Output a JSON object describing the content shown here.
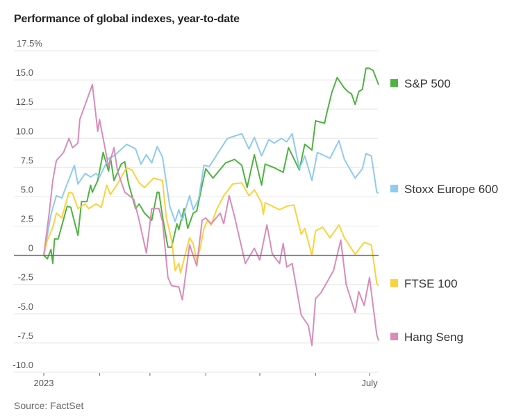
{
  "title": "Performance of global indexes, year-to-date",
  "source": "Source: FactSet",
  "chart_data": {
    "type": "line",
    "title": "Performance of global indexes, year-to-date",
    "xlabel": "",
    "ylabel": "",
    "x_range": [
      "2023-01-01",
      "2023-07-06"
    ],
    "ylim": [
      -10,
      17.5
    ],
    "y_ticks": [
      17.5,
      15,
      12.5,
      10,
      7.5,
      5,
      2.5,
      0,
      -2.5,
      -5,
      -7.5,
      -10
    ],
    "y_tick_labels": [
      "17.5%",
      "15.0",
      "12.5",
      "10.0",
      "7.5",
      "5.0",
      "2.5",
      "0",
      "-2.5",
      "-5.0",
      "-7.5",
      "-10.0"
    ],
    "x_ticks": [
      "2023-01-01",
      "2023-02-01",
      "2023-03-01",
      "2023-04-01",
      "2023-05-01",
      "2023-06-01",
      "2023-07-01"
    ],
    "x_tick_labels": [
      {
        "date": "2023-01-01",
        "label": "2023"
      },
      {
        "date": "2023-07-01",
        "label": "July"
      }
    ],
    "grid": true,
    "legend_placement": "right, at line ends",
    "series": [
      {
        "name": "S&P 500",
        "color": "#4db340",
        "points": [
          [
            "2023-01-01",
            0
          ],
          [
            "2023-01-03",
            -0.3
          ],
          [
            "2023-01-05",
            0.5
          ],
          [
            "2023-01-06",
            -0.7
          ],
          [
            "2023-01-07",
            1.4
          ],
          [
            "2023-01-09",
            1.4
          ],
          [
            "2023-01-14",
            4.2
          ],
          [
            "2023-01-16",
            4.1
          ],
          [
            "2023-01-20",
            1.7
          ],
          [
            "2023-01-22",
            4.6
          ],
          [
            "2023-01-25",
            4.6
          ],
          [
            "2023-01-27",
            6.0
          ],
          [
            "2023-01-28",
            5.4
          ],
          [
            "2023-01-31",
            6.4
          ],
          [
            "2023-02-03",
            8.8
          ],
          [
            "2023-02-06",
            7.2
          ],
          [
            "2023-02-07",
            8.4
          ],
          [
            "2023-02-09",
            6.4
          ],
          [
            "2023-02-13",
            7.8
          ],
          [
            "2023-02-15",
            8.0
          ],
          [
            "2023-02-17",
            6.2
          ],
          [
            "2023-02-21",
            4.0
          ],
          [
            "2023-02-23",
            4.4
          ],
          [
            "2023-02-26",
            3.6
          ],
          [
            "2023-03-02",
            3.0
          ],
          [
            "2023-03-05",
            5.4
          ],
          [
            "2023-03-06",
            5.4
          ],
          [
            "2023-03-08",
            3.3
          ],
          [
            "2023-03-11",
            0.7
          ],
          [
            "2023-03-13",
            0.7
          ],
          [
            "2023-03-16",
            2.7
          ],
          [
            "2023-03-17",
            2.2
          ],
          [
            "2023-03-20",
            4.0
          ],
          [
            "2023-03-22",
            2.3
          ],
          [
            "2023-03-25",
            3.6
          ],
          [
            "2023-03-27",
            3.8
          ],
          [
            "2023-03-30",
            6.0
          ],
          [
            "2023-04-01",
            7.4
          ],
          [
            "2023-04-05",
            6.6
          ],
          [
            "2023-04-12",
            7.9
          ],
          [
            "2023-04-17",
            8.2
          ],
          [
            "2023-04-21",
            7.7
          ],
          [
            "2023-04-24",
            5.8
          ],
          [
            "2023-04-28",
            8.6
          ],
          [
            "2023-05-02",
            6.0
          ],
          [
            "2023-05-04",
            7.8
          ],
          [
            "2023-05-09",
            7.5
          ],
          [
            "2023-05-14",
            7.1
          ],
          [
            "2023-05-17",
            9.2
          ],
          [
            "2023-05-23",
            7.3
          ],
          [
            "2023-05-26",
            9.5
          ],
          [
            "2023-05-30",
            9.0
          ],
          [
            "2023-06-01",
            11.5
          ],
          [
            "2023-06-06",
            11.3
          ],
          [
            "2023-06-07",
            12.0
          ],
          [
            "2023-06-10",
            13.9
          ],
          [
            "2023-06-13",
            15.2
          ],
          [
            "2023-06-17",
            14.3
          ],
          [
            "2023-06-19",
            14.0
          ],
          [
            "2023-06-21",
            13.8
          ],
          [
            "2023-06-23",
            12.9
          ],
          [
            "2023-06-25",
            14.0
          ],
          [
            "2023-06-27",
            14.2
          ],
          [
            "2023-06-29",
            16.0
          ],
          [
            "2023-07-01",
            16.0
          ],
          [
            "2023-07-03",
            15.8
          ],
          [
            "2023-07-06",
            14.6
          ]
        ]
      },
      {
        "name": "Stoxx Europe 600",
        "color": "#8ecbf0",
        "points": [
          [
            "2023-01-01",
            0
          ],
          [
            "2023-01-05",
            3.5
          ],
          [
            "2023-01-08",
            5.1
          ],
          [
            "2023-01-11",
            4.9
          ],
          [
            "2023-01-18",
            7.7
          ],
          [
            "2023-01-20",
            6.1
          ],
          [
            "2023-01-24",
            7.0
          ],
          [
            "2023-01-27",
            6.7
          ],
          [
            "2023-01-30",
            7.0
          ],
          [
            "2023-02-01",
            6.7
          ],
          [
            "2023-02-06",
            8.3
          ],
          [
            "2023-02-09",
            8.5
          ],
          [
            "2023-02-16",
            9.5
          ],
          [
            "2023-02-21",
            9.1
          ],
          [
            "2023-02-24",
            7.8
          ],
          [
            "2023-02-27",
            8.6
          ],
          [
            "2023-03-02",
            7.9
          ],
          [
            "2023-03-05",
            9.3
          ],
          [
            "2023-03-08",
            8.4
          ],
          [
            "2023-03-12",
            4.2
          ],
          [
            "2023-03-15",
            2.9
          ],
          [
            "2023-03-17",
            3.9
          ],
          [
            "2023-03-19",
            3.0
          ],
          [
            "2023-03-23",
            5.1
          ],
          [
            "2023-03-25",
            3.9
          ],
          [
            "2023-03-28",
            4.8
          ],
          [
            "2023-03-31",
            7.7
          ],
          [
            "2023-04-03",
            7.6
          ],
          [
            "2023-04-13",
            10.0
          ],
          [
            "2023-04-21",
            10.4
          ],
          [
            "2023-04-25",
            9.1
          ],
          [
            "2023-04-28",
            10.1
          ],
          [
            "2023-05-02",
            8.5
          ],
          [
            "2023-05-06",
            9.9
          ],
          [
            "2023-05-09",
            9.6
          ],
          [
            "2023-05-13",
            10.0
          ],
          [
            "2023-05-16",
            9.7
          ],
          [
            "2023-05-19",
            10.4
          ],
          [
            "2023-05-23",
            7.4
          ],
          [
            "2023-05-26",
            8.5
          ],
          [
            "2023-05-30",
            6.4
          ],
          [
            "2023-06-02",
            8.8
          ],
          [
            "2023-06-09",
            8.3
          ],
          [
            "2023-06-14",
            9.8
          ],
          [
            "2023-06-17",
            8.2
          ],
          [
            "2023-06-23",
            6.6
          ],
          [
            "2023-06-27",
            7.4
          ],
          [
            "2023-06-29",
            8.7
          ],
          [
            "2023-07-02",
            8.5
          ],
          [
            "2023-07-05",
            5.4
          ],
          [
            "2023-07-06",
            5.3
          ]
        ]
      },
      {
        "name": "FTSE 100",
        "color": "#fdd13a",
        "points": [
          [
            "2023-01-01",
            0
          ],
          [
            "2023-01-03",
            1.3
          ],
          [
            "2023-01-06",
            2.4
          ],
          [
            "2023-01-08",
            3.6
          ],
          [
            "2023-01-11",
            3.2
          ],
          [
            "2023-01-15",
            5.4
          ],
          [
            "2023-01-17",
            5.3
          ],
          [
            "2023-01-20",
            4.0
          ],
          [
            "2023-01-24",
            4.4
          ],
          [
            "2023-01-26",
            4.0
          ],
          [
            "2023-01-30",
            4.4
          ],
          [
            "2023-02-02",
            4.1
          ],
          [
            "2023-02-05",
            6.0
          ],
          [
            "2023-02-07",
            5.2
          ],
          [
            "2023-02-11",
            6.1
          ],
          [
            "2023-02-16",
            7.5
          ],
          [
            "2023-02-19",
            7.3
          ],
          [
            "2023-02-23",
            6.2
          ],
          [
            "2023-02-26",
            5.8
          ],
          [
            "2023-03-03",
            6.6
          ],
          [
            "2023-03-08",
            6.4
          ],
          [
            "2023-03-10",
            3.3
          ],
          [
            "2023-03-13",
            1.3
          ],
          [
            "2023-03-15",
            -1.3
          ],
          [
            "2023-03-17",
            -0.7
          ],
          [
            "2023-03-18",
            -1.5
          ],
          [
            "2023-03-23",
            1.5
          ],
          [
            "2023-03-25",
            1.0
          ],
          [
            "2023-03-27",
            -0.5
          ],
          [
            "2023-03-29",
            0.7
          ],
          [
            "2023-03-31",
            2.3
          ],
          [
            "2023-04-02",
            3.0
          ],
          [
            "2023-04-04",
            2.6
          ],
          [
            "2023-04-07",
            3.9
          ],
          [
            "2023-04-11",
            5.1
          ],
          [
            "2023-04-16",
            6.1
          ],
          [
            "2023-04-21",
            6.2
          ],
          [
            "2023-04-25",
            5.1
          ],
          [
            "2023-04-28",
            5.6
          ],
          [
            "2023-05-02",
            4.5
          ],
          [
            "2023-05-03",
            3.5
          ],
          [
            "2023-05-04",
            4.5
          ],
          [
            "2023-05-12",
            3.9
          ],
          [
            "2023-05-16",
            4.2
          ],
          [
            "2023-05-20",
            4.3
          ],
          [
            "2023-05-24",
            1.8
          ],
          [
            "2023-05-26",
            2.3
          ],
          [
            "2023-05-30",
            0
          ],
          [
            "2023-06-01",
            2.1
          ],
          [
            "2023-06-05",
            2.4
          ],
          [
            "2023-06-09",
            1.5
          ],
          [
            "2023-06-14",
            2.6
          ],
          [
            "2023-06-17",
            1.5
          ],
          [
            "2023-06-23",
            0.1
          ],
          [
            "2023-06-28",
            1.1
          ],
          [
            "2023-07-02",
            0.9
          ],
          [
            "2023-07-05",
            -2.4
          ],
          [
            "2023-07-06",
            -2.6
          ]
        ]
      },
      {
        "name": "Hang Seng",
        "color": "#d98cb8",
        "points": [
          [
            "2023-01-01",
            0
          ],
          [
            "2023-01-04",
            3.6
          ],
          [
            "2023-01-06",
            6.4
          ],
          [
            "2023-01-08",
            8.1
          ],
          [
            "2023-01-12",
            8.8
          ],
          [
            "2023-01-15",
            10.0
          ],
          [
            "2023-01-17",
            9.2
          ],
          [
            "2023-01-20",
            9.6
          ],
          [
            "2023-01-21",
            11.6
          ],
          [
            "2023-01-28",
            14.6
          ],
          [
            "2023-01-31",
            10.6
          ],
          [
            "2023-02-01",
            11.6
          ],
          [
            "2023-02-06",
            7.6
          ],
          [
            "2023-02-09",
            9.2
          ],
          [
            "2023-02-11",
            7.2
          ],
          [
            "2023-02-15",
            5.4
          ],
          [
            "2023-02-20",
            4.8
          ],
          [
            "2023-02-23",
            3.0
          ],
          [
            "2023-02-27",
            0.2
          ],
          [
            "2023-03-02",
            4.0
          ],
          [
            "2023-03-06",
            4.0
          ],
          [
            "2023-03-08",
            2.9
          ],
          [
            "2023-03-11",
            -1.9
          ],
          [
            "2023-03-13",
            -2.6
          ],
          [
            "2023-03-17",
            -2.7
          ],
          [
            "2023-03-19",
            -3.8
          ],
          [
            "2023-03-23",
            0.9
          ],
          [
            "2023-03-27",
            -0.9
          ],
          [
            "2023-03-30",
            3.0
          ],
          [
            "2023-04-01",
            3.2
          ],
          [
            "2023-04-04",
            2.7
          ],
          [
            "2023-04-09",
            3.6
          ],
          [
            "2023-04-11",
            2.7
          ],
          [
            "2023-04-14",
            5.1
          ],
          [
            "2023-04-17",
            3.3
          ],
          [
            "2023-04-23",
            -0.7
          ],
          [
            "2023-04-28",
            0.6
          ],
          [
            "2023-05-01",
            -0.4
          ],
          [
            "2023-05-05",
            2.6
          ],
          [
            "2023-05-08",
            0.1
          ],
          [
            "2023-05-12",
            -0.7
          ],
          [
            "2023-05-14",
            1.0
          ],
          [
            "2023-05-16",
            -1.0
          ],
          [
            "2023-05-19",
            -0.7
          ],
          [
            "2023-05-24",
            -5.1
          ],
          [
            "2023-05-28",
            -6.0
          ],
          [
            "2023-05-30",
            -7.7
          ],
          [
            "2023-06-01",
            -3.7
          ],
          [
            "2023-06-04",
            -3.2
          ],
          [
            "2023-06-07",
            -2.4
          ],
          [
            "2023-06-11",
            -1.3
          ],
          [
            "2023-06-15",
            1.3
          ],
          [
            "2023-06-18",
            -2.5
          ],
          [
            "2023-06-23",
            -4.9
          ],
          [
            "2023-06-25",
            -3.1
          ],
          [
            "2023-06-28",
            -4.3
          ],
          [
            "2023-07-01",
            -1.9
          ],
          [
            "2023-07-05",
            -6.8
          ],
          [
            "2023-07-06",
            -7.3
          ]
        ]
      }
    ]
  }
}
